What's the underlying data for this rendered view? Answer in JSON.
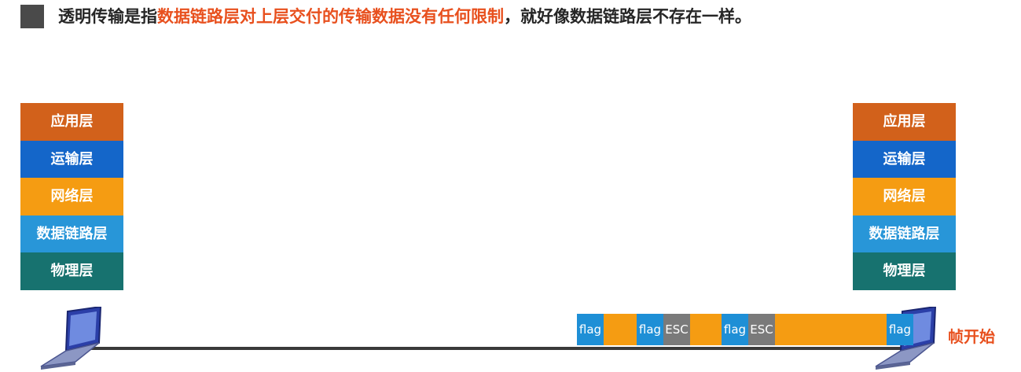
{
  "headline": {
    "prefix": "透明传输是指",
    "highlight": "数据链路层对上层交付的传输数据没有任何限制",
    "suffix": "，就好像数据链路层不存在一样。"
  },
  "stack_left": [
    {
      "label": "应用层",
      "color": "#d2611b"
    },
    {
      "label": "运输层",
      "color": "#1466c9"
    },
    {
      "label": "网络层",
      "color": "#f59c12"
    },
    {
      "label": "数据链路层",
      "color": "#2896d8"
    },
    {
      "label": "物理层",
      "color": "#17726f"
    }
  ],
  "stack_right": [
    {
      "label": "应用层",
      "color": "#d2611b"
    },
    {
      "label": "运输层",
      "color": "#1466c9"
    },
    {
      "label": "网络层",
      "color": "#f59c12"
    },
    {
      "label": "数据链路层",
      "color": "#2896d8"
    },
    {
      "label": "物理层",
      "color": "#17726f"
    }
  ],
  "frame": {
    "segments": [
      {
        "type": "flag",
        "text": "flag"
      },
      {
        "type": "payload",
        "text": ""
      },
      {
        "type": "flag",
        "text": "flag"
      },
      {
        "type": "esc",
        "text": "ESC"
      },
      {
        "type": "payload",
        "text": ""
      },
      {
        "type": "flag",
        "text": "flag"
      },
      {
        "type": "esc",
        "text": "ESC"
      },
      {
        "type": "payload",
        "text": ""
      },
      {
        "type": "flag",
        "text": "flag"
      }
    ]
  },
  "caption": "帧开始",
  "icons": {
    "computer": "laptop-icon",
    "bullet": "square-bullet-icon"
  }
}
